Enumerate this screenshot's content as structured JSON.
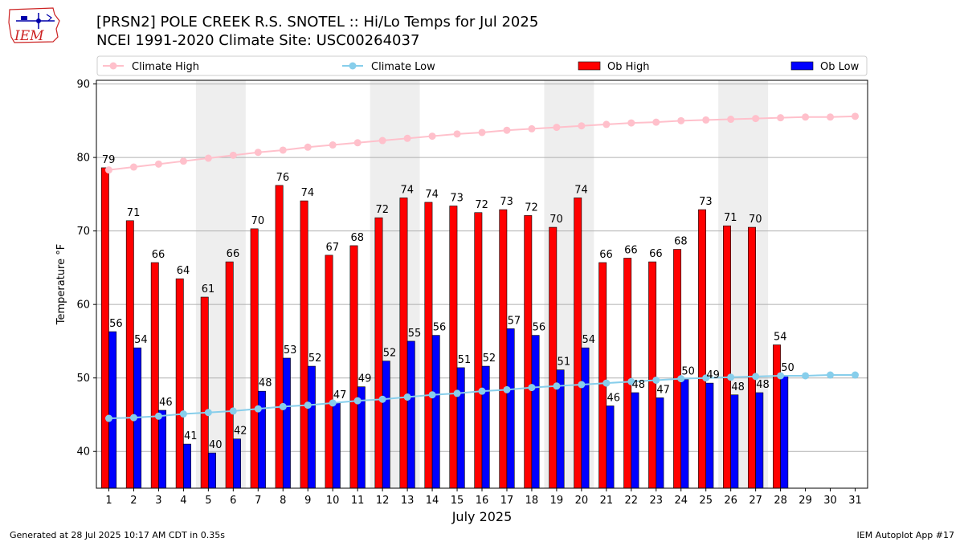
{
  "header": {
    "title_line1": "[PRSN2] POLE CREEK R.S. SNOTEL :: Hi/Lo Temps for Jul 2025",
    "title_line2": "NCEI 1991-2020 Climate Site: USC00264037",
    "logo_text": "IEM"
  },
  "footer": {
    "generated": "Generated at 28 Jul 2025 10:17 AM CDT in 0.35s",
    "app": "IEM Autoplot App #17"
  },
  "colors": {
    "climate_high": "#ffc0cb",
    "climate_low": "#87ceeb",
    "ob_high": "#ff0000",
    "ob_low": "#0000ff",
    "weekend_shade": "#eeeeee",
    "grid": "#b0b0b0"
  },
  "chart_data": {
    "type": "bar",
    "xlabel": "July 2025",
    "ylabel": "Temperature °F",
    "ylim": [
      35,
      90.5
    ],
    "yticks": [
      40,
      50,
      60,
      70,
      80,
      90
    ],
    "grid": "horizontal",
    "legend_placement": "top",
    "categories": [
      "1",
      "2",
      "3",
      "4",
      "5",
      "6",
      "7",
      "8",
      "9",
      "10",
      "11",
      "12",
      "13",
      "14",
      "15",
      "16",
      "17",
      "18",
      "19",
      "20",
      "21",
      "22",
      "23",
      "24",
      "25",
      "26",
      "27",
      "28",
      "29",
      "30",
      "31"
    ],
    "shaded_days": [
      [
        5,
        6
      ],
      [
        12,
        13
      ],
      [
        19,
        20
      ],
      [
        26,
        27
      ]
    ],
    "series": [
      {
        "name": "Climate High",
        "kind": "line",
        "values": [
          78.3,
          78.7,
          79.1,
          79.5,
          79.9,
          80.3,
          80.7,
          81.0,
          81.4,
          81.7,
          82.0,
          82.3,
          82.6,
          82.9,
          83.2,
          83.4,
          83.7,
          83.9,
          84.1,
          84.3,
          84.5,
          84.7,
          84.8,
          85.0,
          85.1,
          85.2,
          85.3,
          85.4,
          85.5,
          85.5,
          85.6
        ]
      },
      {
        "name": "Climate Low",
        "kind": "line",
        "values": [
          44.5,
          44.6,
          44.8,
          45.1,
          45.3,
          45.5,
          45.8,
          46.1,
          46.3,
          46.6,
          46.9,
          47.1,
          47.4,
          47.7,
          47.9,
          48.2,
          48.4,
          48.7,
          48.9,
          49.1,
          49.3,
          49.5,
          49.7,
          49.9,
          50.0,
          50.1,
          50.2,
          50.3,
          50.3,
          50.4,
          50.4
        ]
      },
      {
        "name": "Ob High",
        "kind": "bar",
        "values": [
          78.6,
          71.4,
          65.7,
          63.5,
          61.0,
          65.8,
          70.3,
          76.2,
          74.1,
          66.7,
          68.0,
          71.8,
          74.5,
          73.9,
          73.4,
          72.5,
          72.9,
          72.1,
          70.5,
          74.5,
          65.7,
          66.3,
          65.8,
          67.5,
          72.9,
          70.7,
          70.5,
          54.5,
          null,
          null,
          null
        ],
        "labels": [
          "79",
          "71",
          "66",
          "64",
          "61",
          "66",
          "70",
          "76",
          "74",
          "67",
          "68",
          "72",
          "74",
          "74",
          "73",
          "72",
          "73",
          "72",
          "70",
          "74",
          "66",
          "66",
          "66",
          "68",
          "73",
          "71",
          "70",
          "54",
          "",
          "",
          ""
        ]
      },
      {
        "name": "Ob Low",
        "kind": "bar",
        "values": [
          56.3,
          54.1,
          45.6,
          41.0,
          39.8,
          41.7,
          48.2,
          52.7,
          51.6,
          46.6,
          48.8,
          52.3,
          55.0,
          55.8,
          51.4,
          51.6,
          56.7,
          55.8,
          51.1,
          54.1,
          46.2,
          48.0,
          47.3,
          49.8,
          49.3,
          47.7,
          48.0,
          50.3,
          null,
          null,
          null
        ],
        "labels": [
          "56",
          "54",
          "46",
          "41",
          "40",
          "42",
          "48",
          "53",
          "52",
          "47",
          "49",
          "52",
          "55",
          "56",
          "51",
          "52",
          "57",
          "56",
          "51",
          "54",
          "46",
          "48",
          "47",
          "50",
          "49",
          "48",
          "48",
          "50",
          "",
          "",
          ""
        ]
      }
    ]
  }
}
